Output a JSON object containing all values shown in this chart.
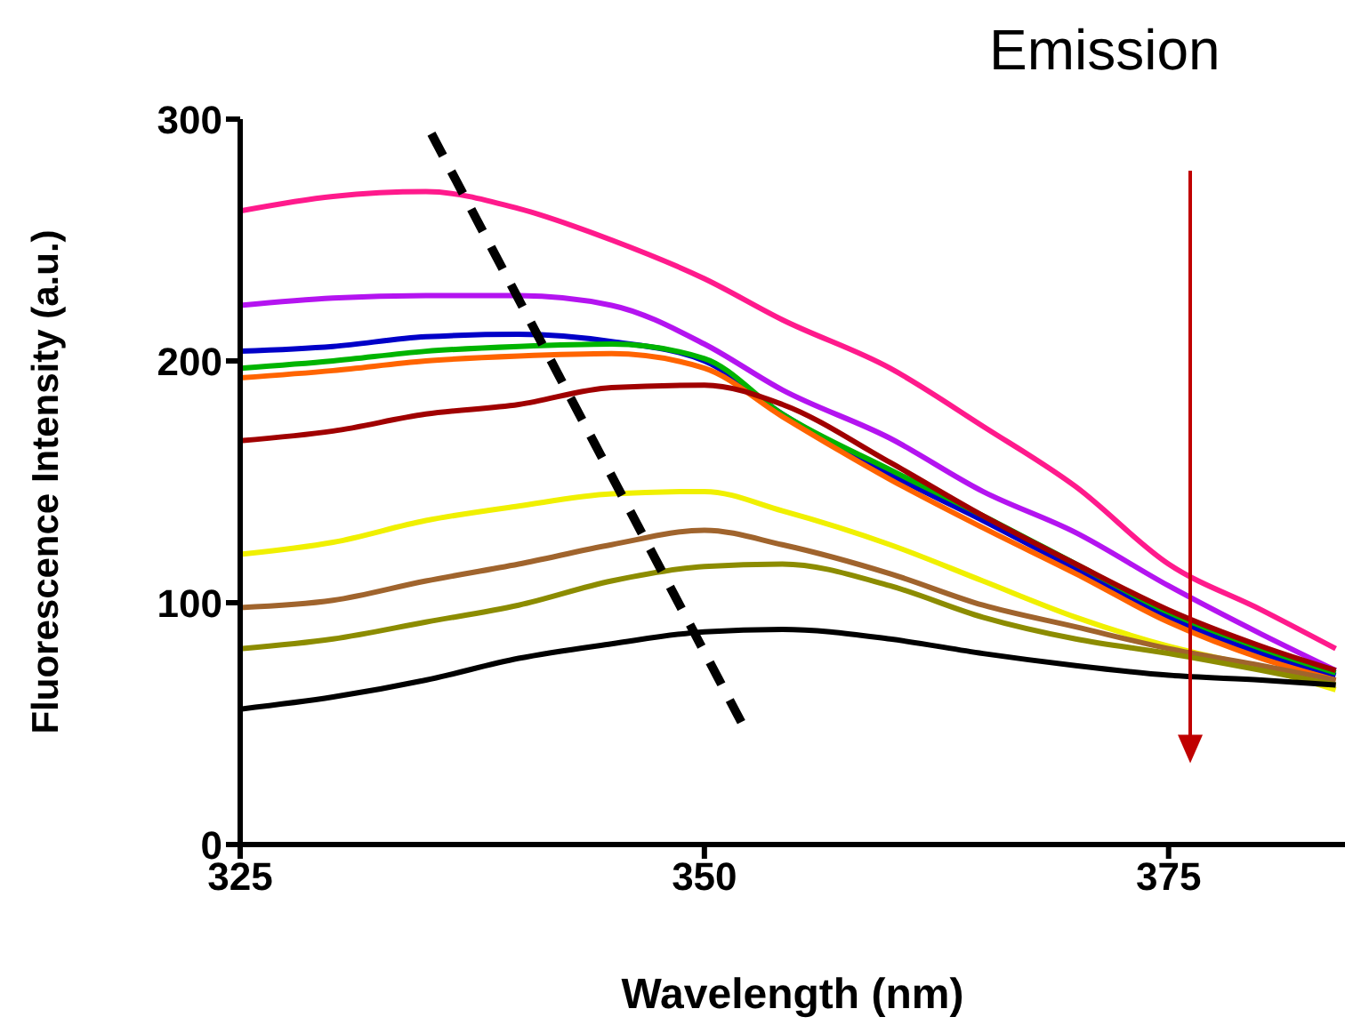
{
  "chart_data": {
    "type": "line",
    "xlabel": "Wavelength (nm)",
    "ylabel": "Fluorescence Intensity (a.u.)",
    "annotations": [
      "Emission"
    ],
    "x": [
      325,
      330,
      335,
      340,
      345,
      350,
      354.2,
      360,
      365,
      370,
      375,
      380,
      384
    ],
    "xlim": [
      325,
      384.5
    ],
    "xticks": [
      325,
      350,
      375
    ],
    "ylim": [
      0,
      300
    ],
    "yticks": [
      0,
      100,
      200,
      300
    ],
    "grid": false,
    "legend": false,
    "marker": "none",
    "line_style": "solid",
    "series": [
      {
        "color": "#ff1a8c",
        "values": [
          262,
          268,
          270,
          263,
          250,
          234,
          217,
          197,
          173,
          148,
          116,
          97,
          81
        ]
      },
      {
        "color": "#b414f0",
        "values": [
          223,
          226,
          227,
          227,
          223,
          207,
          188,
          168,
          146,
          129,
          107,
          87,
          72
        ]
      },
      {
        "color": "#0000c8",
        "values": [
          204,
          206,
          210,
          211,
          208,
          200,
          178,
          153,
          134,
          114,
          94,
          79,
          70
        ]
      },
      {
        "color": "#00b400",
        "values": [
          197,
          200,
          204,
          206,
          207,
          201,
          178,
          155,
          136,
          116,
          96,
          81,
          71
        ]
      },
      {
        "color": "#ff6400",
        "values": [
          193,
          196,
          200,
          202,
          203,
          197,
          177,
          151,
          131,
          112,
          92,
          77,
          68
        ]
      },
      {
        "color": "#a00000",
        "values": [
          167,
          171,
          178,
          182,
          189,
          190,
          182,
          158,
          136,
          116,
          97,
          82,
          72
        ]
      },
      {
        "color": "#f0f000",
        "values": [
          120,
          125,
          134,
          140,
          145,
          146,
          138,
          124,
          109,
          94,
          82,
          73,
          64
        ]
      },
      {
        "color": "#a0642d",
        "values": [
          98,
          101,
          109,
          116,
          124,
          130,
          124,
          112,
          99,
          90,
          81,
          74,
          68
        ]
      },
      {
        "color": "#8c8c00",
        "values": [
          81,
          85,
          92,
          99,
          109,
          115,
          116,
          107,
          94,
          85,
          79,
          72,
          66
        ]
      },
      {
        "color": "#000000",
        "values": [
          56,
          61,
          68,
          77,
          83,
          88,
          89,
          85,
          79,
          74,
          70,
          68,
          66
        ]
      },
      {
        "color": "#000000",
        "line_style": "dashed",
        "x": [
          335.3,
          352.1
        ],
        "values": [
          294,
          49
        ]
      }
    ]
  }
}
